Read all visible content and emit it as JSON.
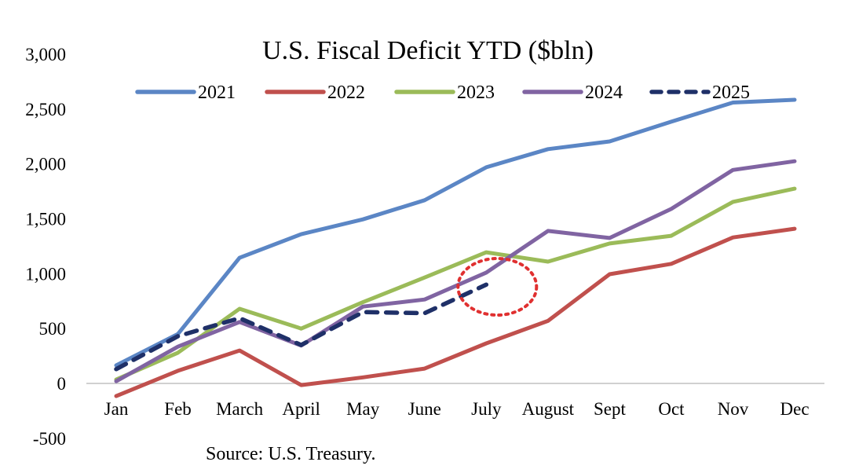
{
  "chart_data": {
    "type": "line",
    "title": "U.S. Fiscal Deficit YTD ($bln)",
    "xlabel": "",
    "ylabel": "",
    "source": "Source: U.S. Treasury.",
    "categories": [
      "Jan",
      "Feb",
      "March",
      "April",
      "May",
      "June",
      "July",
      "August",
      "Sept",
      "Oct",
      "Nov",
      "Dec"
    ],
    "ylim": [
      -500,
      3000
    ],
    "yticks": [
      3000,
      2500,
      2000,
      1500,
      1000,
      500,
      0,
      -500
    ],
    "ytick_labels": [
      "3,000",
      "2,500",
      "2,000",
      "1,500",
      "1,000",
      "500",
      "0",
      "-500"
    ],
    "grid": false,
    "legend_position": "top",
    "series": [
      {
        "name": "2021",
        "color": "#5b86c5",
        "dashed": false,
        "values": [
          165,
          450,
          1145,
          1360,
          1495,
          1670,
          1970,
          2135,
          2205,
          2385,
          2560,
          2585
        ]
      },
      {
        "name": "2022",
        "color": "#c0504d",
        "dashed": false,
        "values": [
          -115,
          115,
          300,
          -15,
          55,
          135,
          365,
          570,
          995,
          1090,
          1330,
          1410
        ]
      },
      {
        "name": "2023",
        "color": "#9bbb59",
        "dashed": false,
        "values": [
          35,
          280,
          680,
          500,
          740,
          965,
          1195,
          1110,
          1275,
          1345,
          1655,
          1775
        ]
      },
      {
        "name": "2024",
        "color": "#8064a2",
        "dashed": false,
        "values": [
          20,
          335,
          560,
          345,
          700,
          765,
          1010,
          1390,
          1325,
          1590,
          1945,
          2025
        ]
      },
      {
        "name": "2025",
        "color": "#1f3068",
        "dashed": true,
        "values": [
          130,
          430,
          595,
          350,
          650,
          640,
          900
        ]
      }
    ],
    "annotations": [
      {
        "type": "dotted-circle",
        "color": "#e03030",
        "around": "July",
        "note": "highlights 2025 July value"
      }
    ]
  }
}
